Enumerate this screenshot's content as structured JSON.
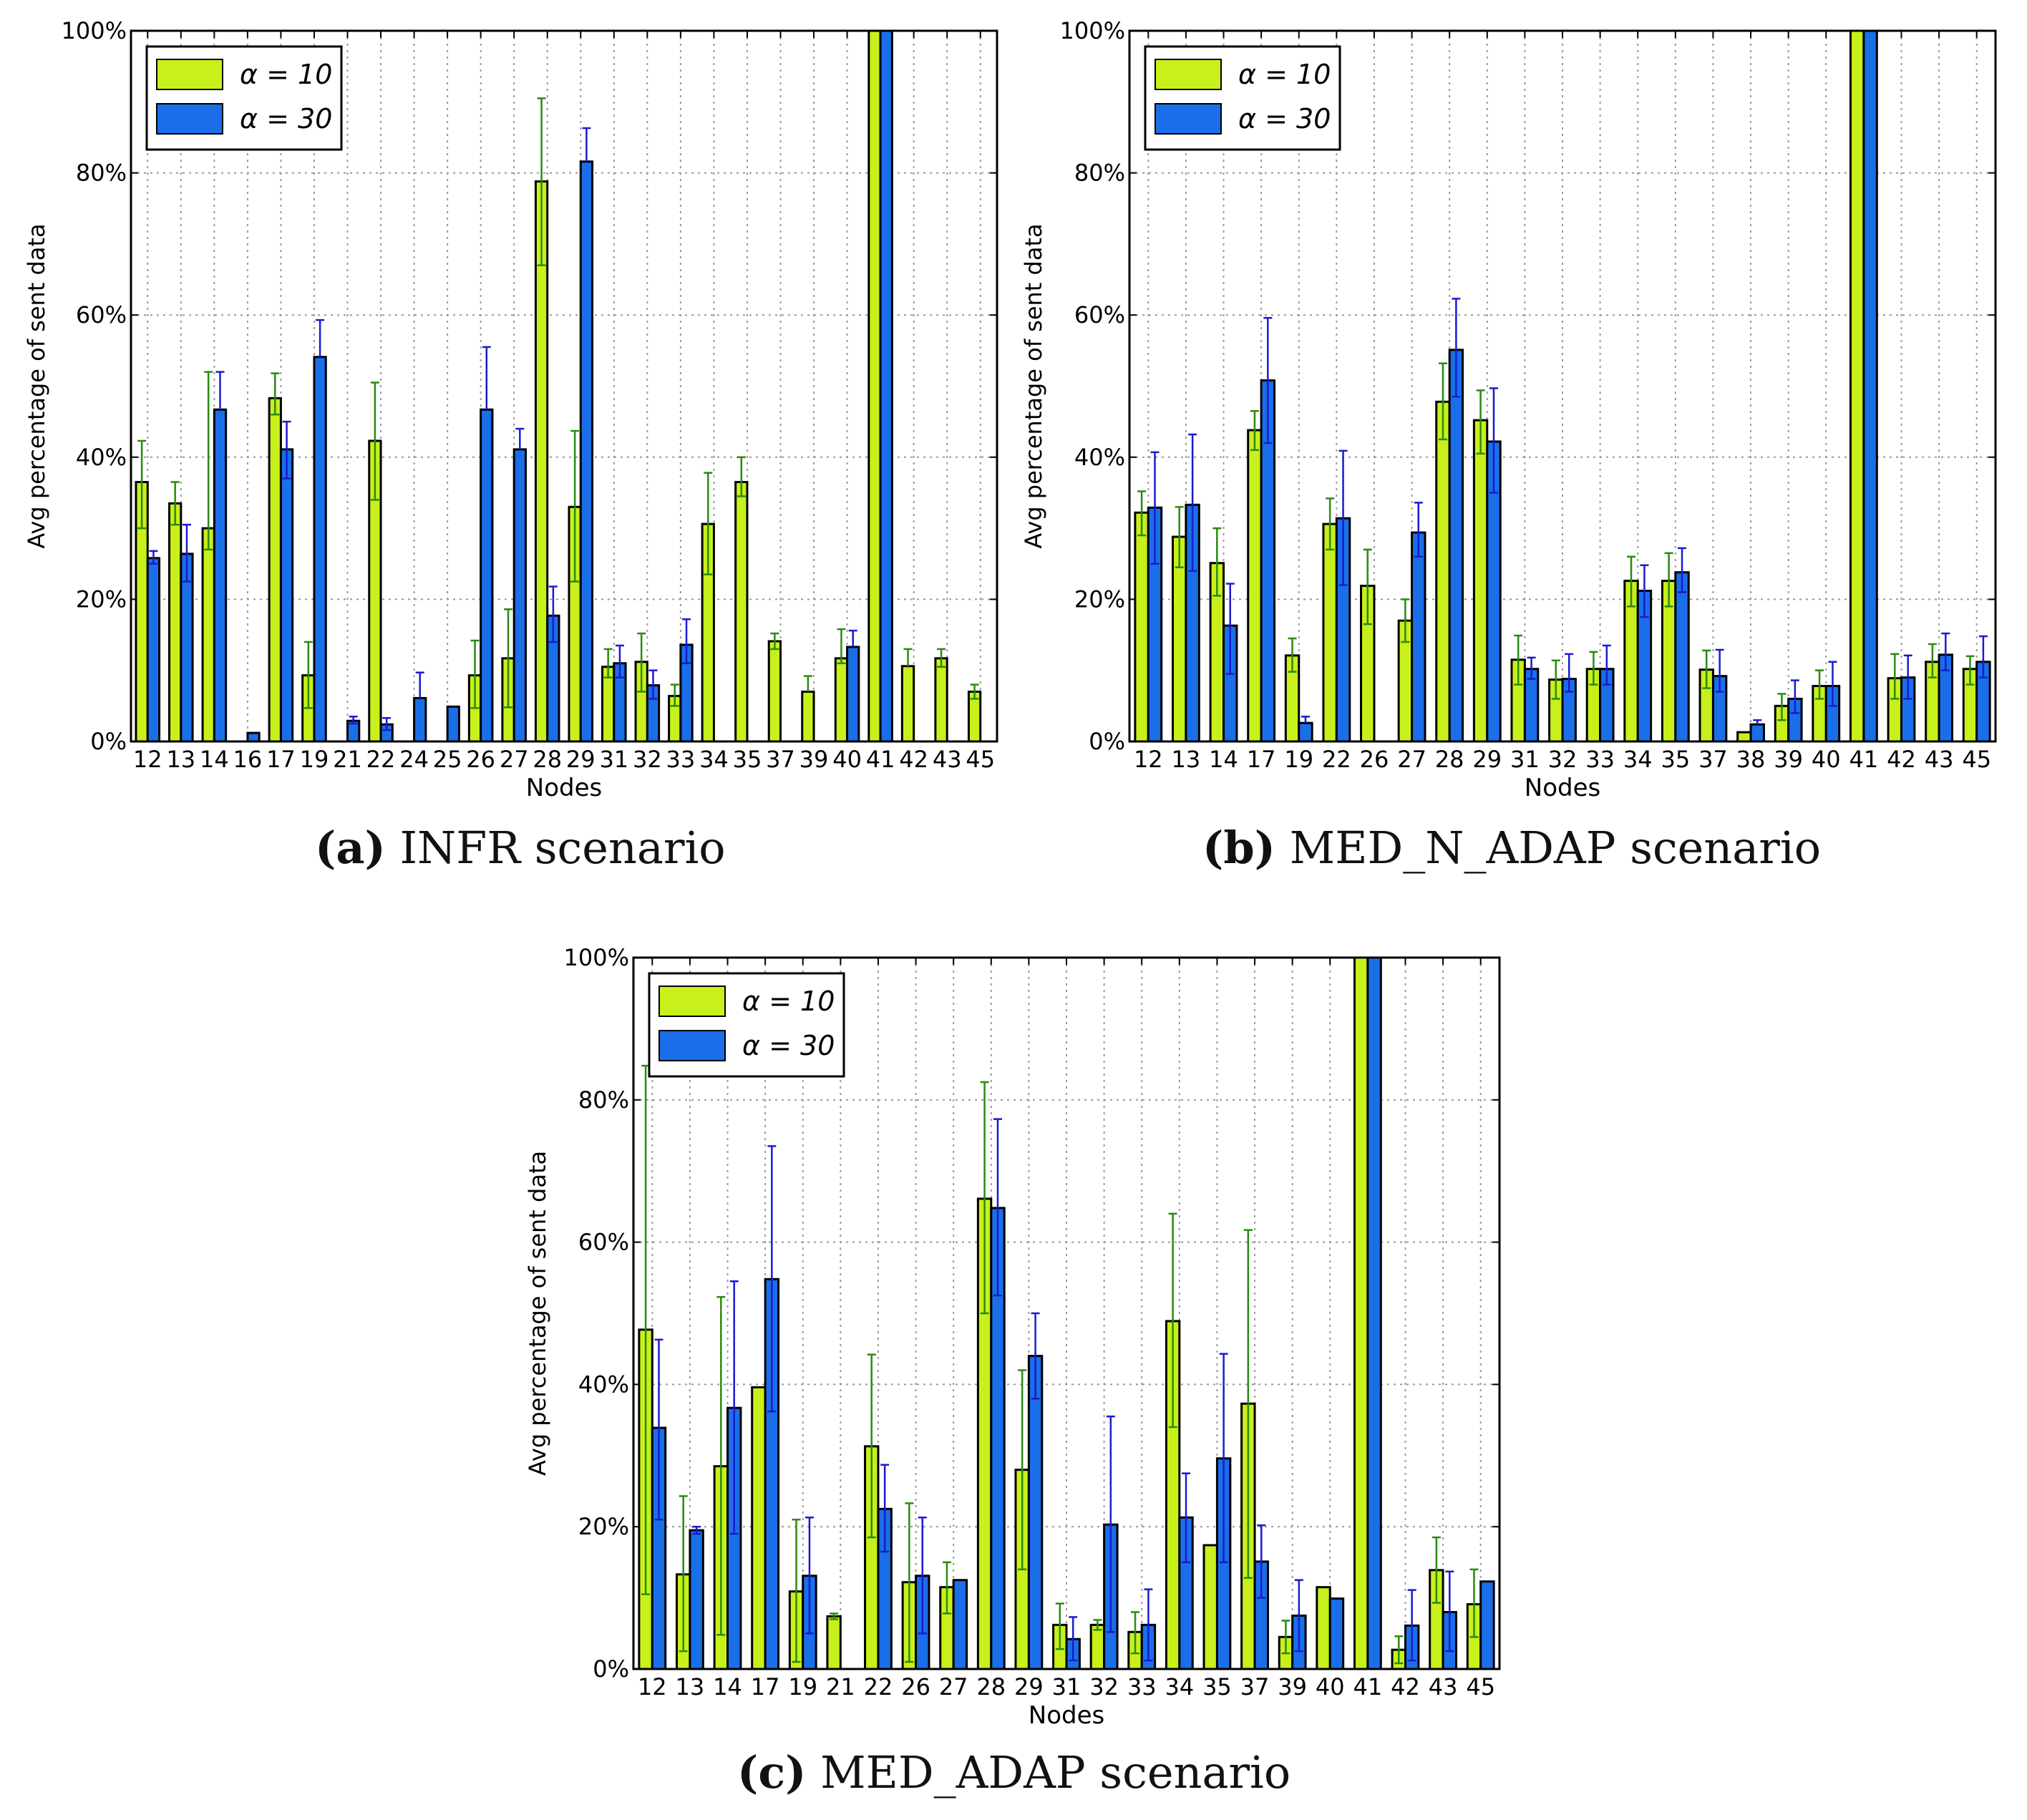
{
  "figure": {
    "legend": [
      "α = 10",
      "α = 30"
    ],
    "colors": {
      "alpha10": "#c8f01a",
      "alpha30": "#1a6fe8",
      "err10": "#2a8a10",
      "err30": "#1a1ad0"
    }
  },
  "chart_data": [
    {
      "type": "bar",
      "panel": "a",
      "caption_label": "(a)",
      "caption_text": "INFR scenario",
      "xlabel": "Nodes",
      "ylabel": "Avg percentage of sent data",
      "ylim": [
        0,
        100
      ],
      "yticks": [
        "0%",
        "20%",
        "40%",
        "60%",
        "80%",
        "100%"
      ],
      "categories": [
        "12",
        "13",
        "14",
        "16",
        "17",
        "19",
        "21",
        "22",
        "24",
        "25",
        "26",
        "27",
        "28",
        "29",
        "31",
        "32",
        "33",
        "34",
        "35",
        "37",
        "39",
        "40",
        "41",
        "42",
        "43",
        "45"
      ],
      "series": [
        {
          "name": "α = 10",
          "values": [
            36.5,
            33.5,
            30,
            null,
            48.3,
            9.3,
            null,
            42.3,
            null,
            null,
            9.3,
            11.7,
            78.8,
            33,
            10.5,
            11.2,
            6.4,
            30.6,
            36.5,
            14.1,
            7,
            11.7,
            100,
            10.6,
            11.7,
            7
          ],
          "err_low": [
            30,
            30.5,
            27,
            null,
            46,
            4.7,
            null,
            34,
            null,
            null,
            4.7,
            4.8,
            67,
            22.5,
            9,
            7,
            5,
            23.5,
            34.5,
            13,
            null,
            11,
            null,
            null,
            10.5,
            6
          ],
          "err_high": [
            42.3,
            36.5,
            52,
            null,
            51.8,
            14,
            null,
            50.5,
            null,
            null,
            14.2,
            18.6,
            90.5,
            43.7,
            13,
            15.2,
            8,
            37.8,
            40,
            15.2,
            9.2,
            15.8,
            null,
            13,
            13,
            8
          ]
        },
        {
          "name": "α = 30",
          "values": [
            25.8,
            26.4,
            46.7,
            1.2,
            41.1,
            54.1,
            2.9,
            2.4,
            6.1,
            4.9,
            46.7,
            41.1,
            17.7,
            81.6,
            11,
            7.9,
            13.6,
            null,
            null,
            null,
            null,
            13.3,
            100,
            null,
            null,
            null
          ],
          "err_low": [
            25,
            22.5,
            null,
            null,
            37,
            null,
            2.5,
            1.6,
            null,
            null,
            null,
            null,
            14,
            null,
            9,
            6,
            11,
            null,
            null,
            null,
            null,
            null,
            null,
            null,
            null,
            null
          ],
          "err_high": [
            26.8,
            30.5,
            52,
            null,
            45,
            59.3,
            3.5,
            3.3,
            9.7,
            null,
            55.5,
            44,
            21.8,
            86.3,
            13.5,
            10,
            17.2,
            null,
            null,
            null,
            null,
            15.6,
            null,
            null,
            null,
            null
          ]
        }
      ]
    },
    {
      "type": "bar",
      "panel": "b",
      "caption_label": "(b)",
      "caption_text": "MED_N_ADAP scenario",
      "xlabel": "Nodes",
      "ylabel": "Avg percentage of sent data",
      "ylim": [
        0,
        100
      ],
      "yticks": [
        "0%",
        "20%",
        "40%",
        "60%",
        "80%",
        "100%"
      ],
      "categories": [
        "12",
        "13",
        "14",
        "17",
        "19",
        "22",
        "26",
        "27",
        "28",
        "29",
        "31",
        "32",
        "33",
        "34",
        "35",
        "37",
        "38",
        "39",
        "40",
        "41",
        "42",
        "43",
        "45"
      ],
      "series": [
        {
          "name": "α = 10",
          "values": [
            32.2,
            28.8,
            25.1,
            43.8,
            12.1,
            30.6,
            21.9,
            17,
            47.8,
            45.2,
            11.5,
            8.7,
            10.2,
            22.6,
            22.6,
            10.1,
            1.3,
            5,
            7.8,
            100,
            8.9,
            11.2,
            10.2
          ],
          "err_low": [
            29,
            24.5,
            20.5,
            41,
            9.8,
            27,
            16.5,
            14,
            42.5,
            40.5,
            8,
            6,
            8,
            19,
            19,
            7.5,
            null,
            3,
            6,
            null,
            6,
            9,
            8
          ],
          "err_high": [
            35.2,
            33,
            30,
            46.5,
            14.5,
            34.2,
            27,
            20,
            53.2,
            49.4,
            14.9,
            11.4,
            12.6,
            26,
            26.5,
            12.8,
            null,
            6.7,
            10,
            null,
            12.3,
            13.7,
            12
          ]
        },
        {
          "name": "α = 30",
          "values": [
            32.9,
            33.3,
            16.3,
            50.8,
            2.6,
            31.4,
            null,
            29.4,
            55.1,
            42.2,
            10.2,
            8.8,
            10.2,
            21.2,
            23.8,
            9.2,
            2.4,
            6,
            7.8,
            100,
            9,
            12.2,
            11.2
          ],
          "err_low": [
            25,
            24,
            9.5,
            42,
            null,
            22,
            null,
            26,
            48.5,
            35,
            8.8,
            7,
            8,
            17.5,
            21,
            7,
            null,
            4,
            5,
            null,
            6,
            10,
            9
          ],
          "err_high": [
            40.7,
            43.2,
            22.2,
            59.6,
            3.5,
            40.9,
            null,
            33.6,
            62.3,
            49.7,
            11.8,
            12.3,
            13.5,
            24.8,
            27.2,
            12.9,
            3,
            8.6,
            11.2,
            null,
            12.1,
            15.2,
            14.8
          ]
        }
      ]
    },
    {
      "type": "bar",
      "panel": "c",
      "caption_label": "(c)",
      "caption_text": "MED_ADAP scenario",
      "xlabel": "Nodes",
      "ylabel": "Avg percentage of sent data",
      "ylim": [
        0,
        100
      ],
      "yticks": [
        "0%",
        "20%",
        "40%",
        "60%",
        "80%",
        "100%"
      ],
      "categories": [
        "12",
        "13",
        "14",
        "17",
        "19",
        "21",
        "22",
        "26",
        "27",
        "28",
        "29",
        "31",
        "32",
        "33",
        "34",
        "35",
        "37",
        "39",
        "40",
        "41",
        "42",
        "43",
        "45"
      ],
      "series": [
        {
          "name": "α = 10",
          "values": [
            47.7,
            13.3,
            28.5,
            39.6,
            10.9,
            7.4,
            31.3,
            12.2,
            11.5,
            66.1,
            28,
            6.2,
            6.2,
            5.2,
            48.9,
            17.4,
            37.3,
            4.5,
            11.5,
            100,
            2.7,
            13.9,
            9.1
          ],
          "err_low": [
            10.5,
            2.5,
            4.8,
            null,
            1,
            7,
            18.5,
            1,
            7.8,
            50,
            14,
            2.8,
            5.5,
            2.2,
            34,
            null,
            12.8,
            2.2,
            null,
            null,
            0.8,
            9.3,
            4.5
          ],
          "err_high": [
            84.8,
            24.3,
            52.3,
            null,
            21,
            7.8,
            44.2,
            23.3,
            15,
            82.5,
            42,
            9.2,
            6.9,
            8,
            64,
            null,
            61.7,
            6.8,
            null,
            null,
            4.6,
            18.5,
            14
          ]
        },
        {
          "name": "α = 30",
          "values": [
            33.9,
            19.5,
            36.7,
            54.8,
            13.1,
            null,
            22.5,
            13.1,
            12.5,
            64.8,
            44,
            4.2,
            20.3,
            6.2,
            21.3,
            29.6,
            15.1,
            7.5,
            9.9,
            100,
            6.1,
            8,
            12.3
          ],
          "err_low": [
            21,
            19,
            19,
            36.2,
            5,
            null,
            16.5,
            5,
            null,
            52.5,
            38,
            1.2,
            5.2,
            1.2,
            15,
            15,
            10,
            2.5,
            null,
            null,
            1.2,
            2.5,
            null
          ],
          "err_high": [
            46.3,
            20,
            54.5,
            73.5,
            21.3,
            null,
            28.7,
            21.3,
            null,
            77.3,
            50,
            7.3,
            35.5,
            11.2,
            27.5,
            44.3,
            20.2,
            12.5,
            null,
            null,
            11.1,
            13.7,
            null
          ]
        }
      ]
    }
  ]
}
